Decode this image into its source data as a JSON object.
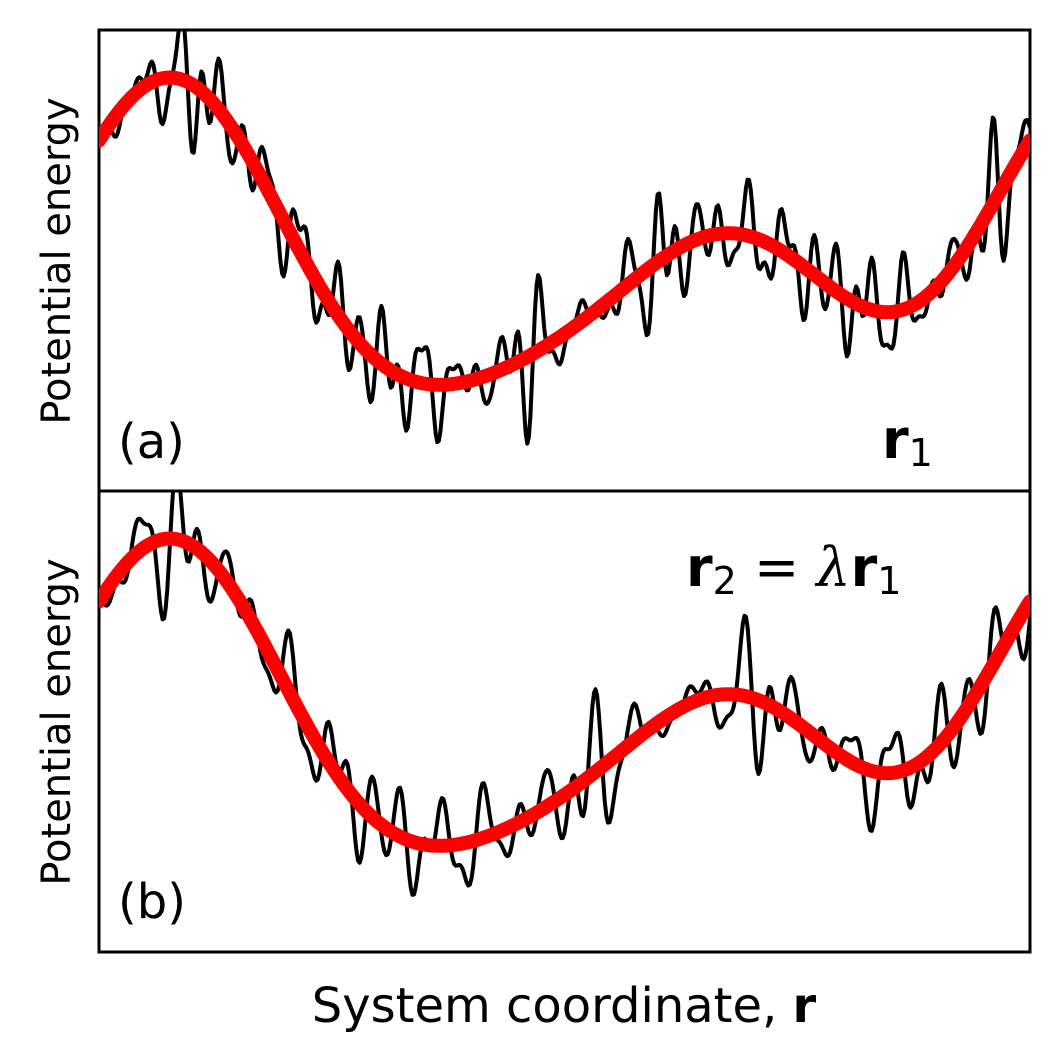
{
  "chart_data": [
    {
      "type": "line",
      "panel_label": "(a)",
      "ylabel": "Potential energy",
      "xlabel": "",
      "annotation": {
        "bold": "r",
        "sub": "1",
        "rest": ""
      },
      "axis_ticks": "none",
      "grid": false,
      "series": [
        {
          "name": "",
          "color": "#000000",
          "linewidth": "thin",
          "kind": "rough",
          "base_amp": 1.0,
          "rough_amp": 0.22,
          "rough_freq": 1.0
        },
        {
          "name": "",
          "color": "#ff0000",
          "linewidth": "thick",
          "kind": "smooth",
          "base_amp": 1.0
        }
      ],
      "x_range": [
        0,
        1
      ],
      "ylim": [
        -1.45,
        1.45
      ]
    },
    {
      "type": "line",
      "panel_label": "(b)",
      "ylabel": "Potential energy",
      "xlabel": "System coordinate, ",
      "xlabel_bold": "r",
      "annotation": {
        "bold": "r",
        "sub": "2",
        "rest": " = ",
        "lambda": "λ",
        "bold2": "r",
        "sub2": "1"
      },
      "axis_ticks": "none",
      "grid": false,
      "series": [
        {
          "name": "",
          "color": "#000000",
          "linewidth": "thin",
          "kind": "rough",
          "base_amp": 1.0,
          "rough_amp": 0.22,
          "rough_freq": 0.8
        },
        {
          "name": "",
          "color": "#ff0000",
          "linewidth": "thick",
          "kind": "smooth",
          "base_amp": 1.0
        }
      ],
      "x_range": [
        0,
        1
      ],
      "ylim": [
        -1.45,
        1.45
      ]
    }
  ]
}
